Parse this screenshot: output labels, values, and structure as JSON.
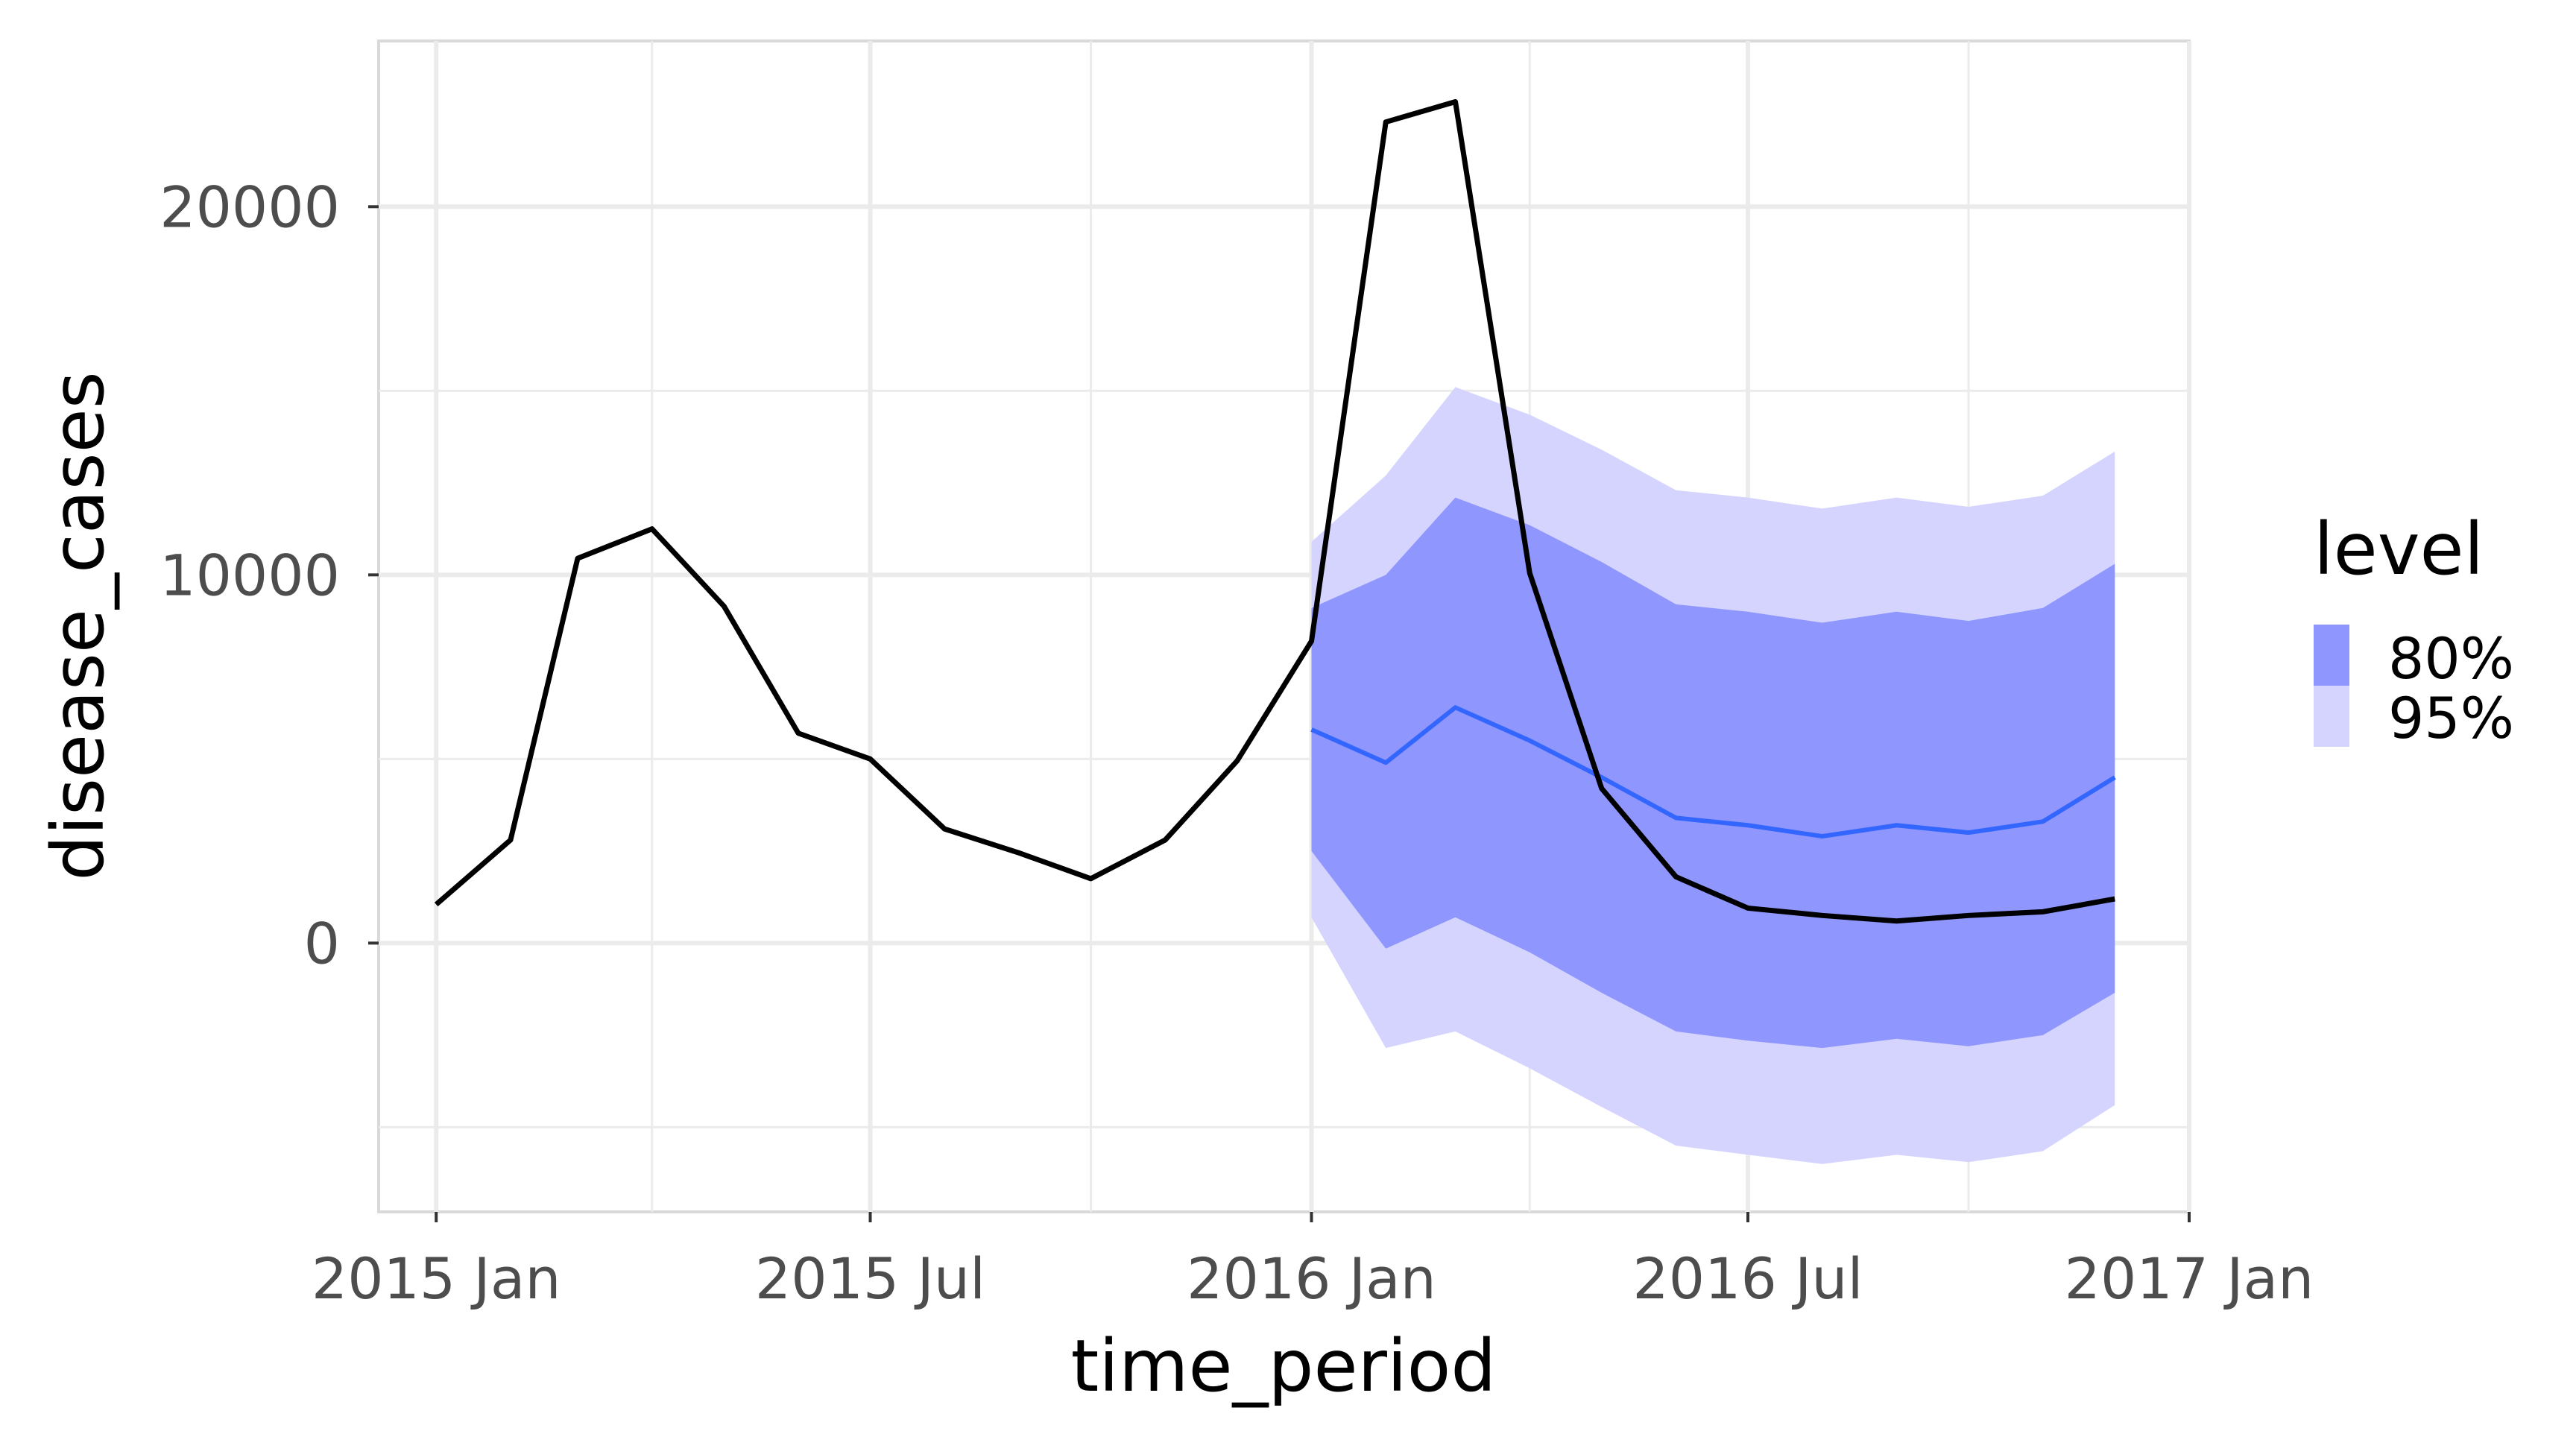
{
  "chart_data": {
    "type": "line",
    "xlabel": "time_period",
    "ylabel": "disease_cases",
    "xlim": [
      "2014-12-08",
      "2017-01-01"
    ],
    "ylim": [
      -7300,
      24500
    ],
    "x_ticks": [
      {
        "date": "2015-01-01",
        "label": "2015 Jan"
      },
      {
        "date": "2015-07-01",
        "label": "2015 Jul"
      },
      {
        "date": "2016-01-01",
        "label": "2016 Jan"
      },
      {
        "date": "2016-07-01",
        "label": "2016 Jul"
      },
      {
        "date": "2017-01-01",
        "label": "2017 Jan"
      }
    ],
    "x_minor_ticks": [
      "2015-04-01",
      "2015-10-01",
      "2016-04-01",
      "2016-10-01"
    ],
    "y_ticks": [
      {
        "value": 0,
        "label": "0"
      },
      {
        "value": 10000,
        "label": "10000"
      },
      {
        "value": 20000,
        "label": "20000"
      }
    ],
    "y_minor_ticks": [
      -5000,
      5000,
      15000
    ],
    "grid": true,
    "legend": {
      "title": "level",
      "placement": "right",
      "items": [
        {
          "label": "80%",
          "color": "#8f96fd"
        },
        {
          "label": "95%",
          "color": "#d4d4ff"
        }
      ]
    },
    "observed": {
      "color": "#000000",
      "x": [
        "2015-01-01",
        "2015-02-01",
        "2015-03-01",
        "2015-04-01",
        "2015-05-01",
        "2015-06-01",
        "2015-07-01",
        "2015-08-01",
        "2015-09-01",
        "2015-10-01",
        "2015-11-01",
        "2015-12-01",
        "2016-01-01",
        "2016-02-01",
        "2016-03-01",
        "2016-04-01",
        "2016-05-01",
        "2016-06-01",
        "2016-07-01",
        "2016-08-01",
        "2016-09-01",
        "2016-10-01",
        "2016-11-01",
        "2016-12-01"
      ],
      "y": [
        1050,
        2800,
        10450,
        11250,
        9150,
        5700,
        5000,
        3100,
        2450,
        1750,
        2800,
        4950,
        8200,
        22300,
        22850,
        10050,
        4200,
        1800,
        950,
        750,
        600,
        750,
        850,
        1200
      ]
    },
    "forecast": {
      "median_color": "#3366ff",
      "x": [
        "2016-01-01",
        "2016-02-01",
        "2016-03-01",
        "2016-04-01",
        "2016-05-01",
        "2016-06-01",
        "2016-07-01",
        "2016-08-01",
        "2016-09-01",
        "2016-10-01",
        "2016-11-01",
        "2016-12-01"
      ],
      "median": [
        5800,
        4900,
        6400,
        5500,
        4500,
        3400,
        3200,
        2900,
        3200,
        3000,
        3300,
        4500
      ],
      "lower80": [
        2500,
        -150,
        700,
        -250,
        -1350,
        -2400,
        -2650,
        -2850,
        -2600,
        -2800,
        -2500,
        -1350
      ],
      "upper80": [
        9100,
        10000,
        12100,
        11350,
        10350,
        9200,
        9000,
        8700,
        9000,
        8750,
        9100,
        10300
      ],
      "lower95": [
        700,
        -2850,
        -2400,
        -3400,
        -4450,
        -5500,
        -5750,
        -6000,
        -5750,
        -5950,
        -5650,
        -4400
      ],
      "upper95": [
        10900,
        12700,
        15100,
        14350,
        13400,
        12300,
        12100,
        11800,
        12100,
        11850,
        12150,
        13350
      ]
    }
  }
}
